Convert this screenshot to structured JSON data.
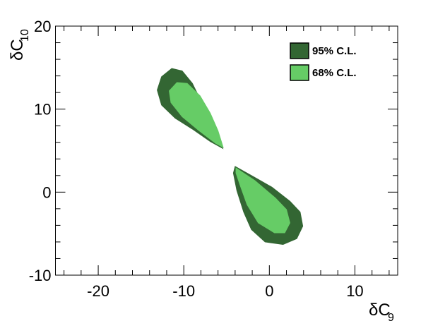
{
  "chart_data": {
    "type": "contour",
    "xlabel": "δC",
    "xlabel_subscript": "9",
    "ylabel": "δC",
    "ylabel_subscript": "10",
    "xlim": [
      -25,
      15
    ],
    "ylim": [
      -10,
      20
    ],
    "xticks": [
      -20,
      -10,
      0,
      10
    ],
    "yticks": [
      -10,
      0,
      10,
      20
    ],
    "legend": "top-right",
    "series": [
      {
        "name": "95% C.L.",
        "color": "#336633",
        "regions": [
          {
            "x": [
              -5.45,
              -6.28,
              -7.1,
              -8.1,
              -9.0,
              -10.2,
              -11.4,
              -12.6,
              -13.1,
              -12.6,
              -11.0,
              -9.0,
              -6.9
            ],
            "y": [
              5.27,
              6.97,
              9.09,
              11.2,
              13.1,
              14.6,
              14.9,
              13.9,
              12.3,
              10.5,
              8.9,
              7.6,
              6.1
            ]
          },
          {
            "x": [
              -4.0,
              -2.1,
              0.3,
              2.4,
              3.6,
              3.9,
              3.2,
              1.6,
              -0.5,
              -2.1,
              -3.0,
              -3.8,
              -4.2
            ],
            "y": [
              3.1,
              2.0,
              0.6,
              -1.1,
              -2.4,
              -4.1,
              -5.6,
              -6.3,
              -6.0,
              -4.5,
              -2.4,
              0.2,
              2.3
            ]
          }
        ]
      },
      {
        "name": "68% C.L.",
        "color": "#66cc66",
        "regions": [
          {
            "x": [
              -5.4,
              -6.0,
              -6.9,
              -8.1,
              -9.6,
              -10.8,
              -11.7,
              -11.5,
              -10.2,
              -8.2,
              -6.3
            ],
            "y": [
              5.4,
              7.4,
              9.5,
              11.6,
              13.1,
              13.2,
              12.2,
              10.8,
              9.1,
              7.4,
              5.9
            ]
          },
          {
            "x": [
              -3.9,
              -1.7,
              0.7,
              2.0,
              2.4,
              1.8,
              0.6,
              -1.3,
              -2.6,
              -3.4,
              -3.9
            ],
            "y": [
              2.9,
              1.4,
              -0.7,
              -2.1,
              -3.7,
              -4.9,
              -4.9,
              -3.7,
              -1.5,
              0.8,
              2.3
            ]
          }
        ]
      }
    ]
  }
}
